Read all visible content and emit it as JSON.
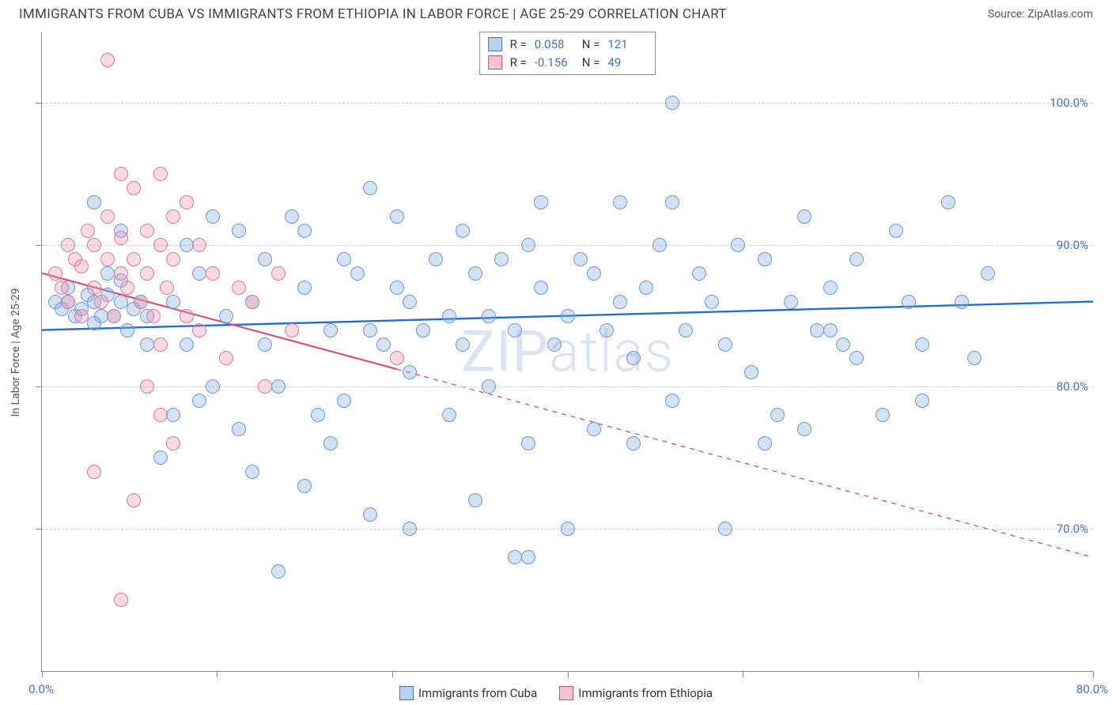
{
  "title": "IMMIGRANTS FROM CUBA VS IMMIGRANTS FROM ETHIOPIA IN LABOR FORCE | AGE 25-29 CORRELATION CHART",
  "source": "Source: ZipAtlas.com",
  "watermark": "ZIPatlas",
  "ylabel": "In Labor Force | Age 25-29",
  "chart": {
    "type": "scatter-correlation",
    "xlim": [
      0,
      80
    ],
    "ylim": [
      60,
      105
    ],
    "yticks": [
      70,
      80,
      90,
      100
    ],
    "ytick_labels": [
      "70.0%",
      "80.0%",
      "90.0%",
      "100.0%"
    ],
    "xticks": [
      0,
      13.33,
      26.67,
      40,
      53.33,
      66.67,
      80
    ],
    "xtick_labels_shown": {
      "0": "0.0%",
      "80": "80.0%"
    },
    "background_color": "#ffffff",
    "grid_color": "#cccccc",
    "axis_color": "#888888",
    "marker_radius": 9,
    "marker_stroke_width": 1.2,
    "marker_fill_opacity": 0.35,
    "series": [
      {
        "name": "Immigrants from Cuba",
        "color_fill": "rgba(130,170,220,0.35)",
        "color_stroke": "#6a9bd1",
        "swatch_fill": "#b9d1ec",
        "swatch_border": "#4472c4",
        "R": "0.058",
        "N": "121",
        "trend": {
          "x1": 0,
          "y1": 84.0,
          "x2": 80,
          "y2": 86.0,
          "solid_until_x": 80,
          "stroke": "#1f6fd0",
          "width": 2.4
        },
        "points": [
          [
            1,
            86
          ],
          [
            1.5,
            85.5
          ],
          [
            2,
            86
          ],
          [
            2,
            87
          ],
          [
            2.5,
            85
          ],
          [
            3,
            85.5
          ],
          [
            3.5,
            86.5
          ],
          [
            4,
            86
          ],
          [
            4,
            84.5
          ],
          [
            4.5,
            85
          ],
          [
            5,
            86.5
          ],
          [
            5,
            88
          ],
          [
            5.5,
            85
          ],
          [
            6,
            86
          ],
          [
            6,
            87.5
          ],
          [
            6.5,
            84
          ],
          [
            7,
            85.5
          ],
          [
            7.5,
            86
          ],
          [
            8,
            85
          ],
          [
            8,
            83
          ],
          [
            4,
            93
          ],
          [
            6,
            91
          ],
          [
            9,
            75
          ],
          [
            10,
            78
          ],
          [
            10,
            86
          ],
          [
            11,
            83
          ],
          [
            11,
            90
          ],
          [
            12,
            79
          ],
          [
            12,
            88
          ],
          [
            13,
            80
          ],
          [
            13,
            92
          ],
          [
            14,
            85
          ],
          [
            15,
            77
          ],
          [
            15,
            91
          ],
          [
            16,
            74
          ],
          [
            16,
            86
          ],
          [
            17,
            83
          ],
          [
            17,
            89
          ],
          [
            18,
            67
          ],
          [
            18,
            80
          ],
          [
            19,
            92
          ],
          [
            20,
            73
          ],
          [
            20,
            87
          ],
          [
            20,
            91
          ],
          [
            21,
            78
          ],
          [
            22,
            76
          ],
          [
            22,
            84
          ],
          [
            23,
            79
          ],
          [
            23,
            89
          ],
          [
            24,
            88
          ],
          [
            25,
            71
          ],
          [
            25,
            84
          ],
          [
            25,
            94
          ],
          [
            26,
            83
          ],
          [
            27,
            87
          ],
          [
            27,
            92
          ],
          [
            28,
            70
          ],
          [
            28,
            81
          ],
          [
            28,
            86
          ],
          [
            29,
            84
          ],
          [
            30,
            89
          ],
          [
            31,
            78
          ],
          [
            31,
            85
          ],
          [
            32,
            83
          ],
          [
            32,
            91
          ],
          [
            33,
            72
          ],
          [
            33,
            88
          ],
          [
            34,
            80
          ],
          [
            34,
            85
          ],
          [
            35,
            89
          ],
          [
            36,
            68
          ],
          [
            36,
            84
          ],
          [
            37,
            76
          ],
          [
            37,
            90
          ],
          [
            38,
            87
          ],
          [
            38,
            93
          ],
          [
            39,
            83
          ],
          [
            40,
            70
          ],
          [
            40,
            85
          ],
          [
            41,
            89
          ],
          [
            42,
            77
          ],
          [
            42,
            88
          ],
          [
            43,
            84
          ],
          [
            44,
            86
          ],
          [
            44,
            93
          ],
          [
            45,
            82
          ],
          [
            46,
            87
          ],
          [
            47,
            90
          ],
          [
            48,
            79
          ],
          [
            48,
            93
          ],
          [
            49,
            84
          ],
          [
            50,
            88
          ],
          [
            51,
            86
          ],
          [
            52,
            83
          ],
          [
            53,
            90
          ],
          [
            54,
            81
          ],
          [
            55,
            89
          ],
          [
            56,
            78
          ],
          [
            57,
            86
          ],
          [
            58,
            92
          ],
          [
            59,
            84
          ],
          [
            60,
            87
          ],
          [
            61,
            83
          ],
          [
            62,
            89
          ],
          [
            64,
            78
          ],
          [
            65,
            91
          ],
          [
            66,
            86
          ],
          [
            67,
            83
          ],
          [
            69,
            93
          ],
          [
            70,
            86
          ],
          [
            71,
            82
          ],
          [
            72,
            88
          ],
          [
            67,
            79
          ],
          [
            62,
            82
          ],
          [
            58,
            77
          ],
          [
            48,
            100
          ],
          [
            52,
            70
          ],
          [
            37,
            68
          ],
          [
            45,
            76
          ],
          [
            55,
            76
          ],
          [
            60,
            84
          ]
        ]
      },
      {
        "name": "Immigrants from Ethiopia",
        "color_fill": "rgba(235,150,175,0.35)",
        "color_stroke": "#d97a9a",
        "swatch_fill": "#f5c2d1",
        "swatch_border": "#d94f78",
        "R": "-0.156",
        "N": "49",
        "trend": {
          "x1": 0,
          "y1": 88.0,
          "x2": 80,
          "y2": 68.0,
          "solid_until_x": 27,
          "stroke": "#d94f78",
          "width": 2.2
        },
        "points": [
          [
            1,
            88
          ],
          [
            1.5,
            87
          ],
          [
            2,
            86
          ],
          [
            2,
            90
          ],
          [
            2.5,
            89
          ],
          [
            3,
            88.5
          ],
          [
            3,
            85
          ],
          [
            3.5,
            91
          ],
          [
            4,
            87
          ],
          [
            4,
            90
          ],
          [
            4.5,
            86
          ],
          [
            5,
            89
          ],
          [
            5,
            92
          ],
          [
            5.5,
            85
          ],
          [
            6,
            88
          ],
          [
            6,
            90.5
          ],
          [
            6.5,
            87
          ],
          [
            7,
            89
          ],
          [
            7,
            94
          ],
          [
            7.5,
            86
          ],
          [
            8,
            91
          ],
          [
            8,
            88
          ],
          [
            8.5,
            85
          ],
          [
            9,
            90
          ],
          [
            9,
            83
          ],
          [
            9.5,
            87
          ],
          [
            10,
            89
          ],
          [
            10,
            92
          ],
          [
            5,
            103
          ],
          [
            6,
            95
          ],
          [
            7,
            72
          ],
          [
            8,
            80
          ],
          [
            9,
            78
          ],
          [
            10,
            76
          ],
          [
            11,
            85
          ],
          [
            12,
            90
          ],
          [
            12,
            84
          ],
          [
            13,
            88
          ],
          [
            14,
            82
          ],
          [
            15,
            87
          ],
          [
            16,
            86
          ],
          [
            17,
            80
          ],
          [
            18,
            88
          ],
          [
            19,
            84
          ],
          [
            6,
            65
          ],
          [
            4,
            74
          ],
          [
            11,
            93
          ],
          [
            9,
            95
          ],
          [
            27,
            82
          ]
        ]
      }
    ]
  },
  "legend": {
    "cuba": "Immigrants from Cuba",
    "ethiopia": "Immigrants from Ethiopia"
  }
}
